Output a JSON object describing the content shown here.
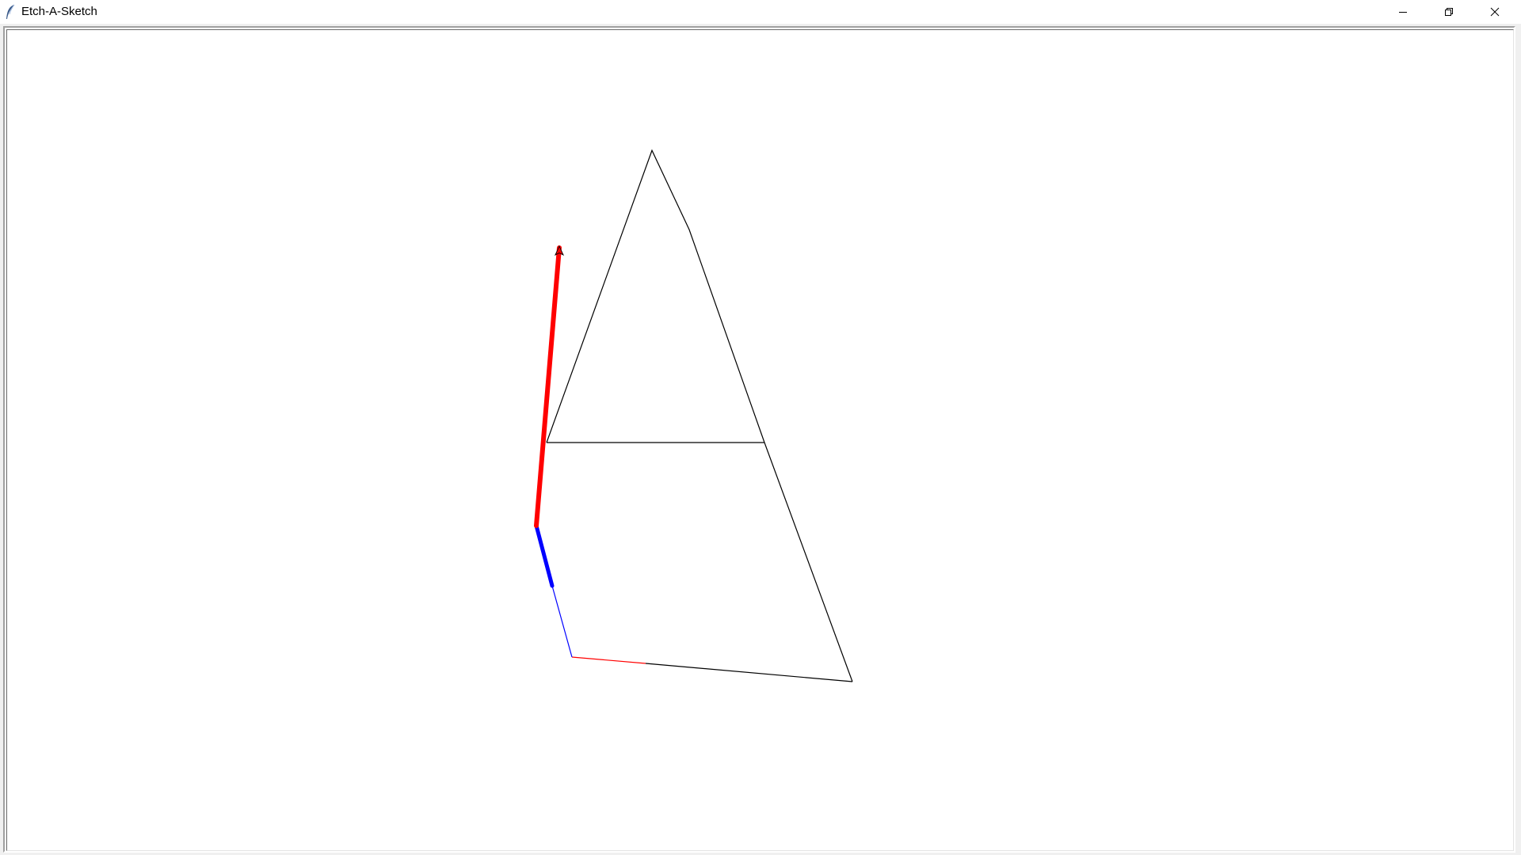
{
  "window": {
    "title": "Etch-A-Sketch",
    "app_icon": "feather-icon",
    "controls": {
      "minimize": "minimize-icon",
      "restore": "restore-icon",
      "close": "close-icon"
    }
  },
  "canvas": {
    "background": "#ffffff",
    "colors": {
      "default_line": "#000000",
      "red_pen": "#ff0000",
      "blue_pen": "#0000ff"
    },
    "turtle": {
      "color": "#ff0000",
      "heading": "up"
    }
  }
}
